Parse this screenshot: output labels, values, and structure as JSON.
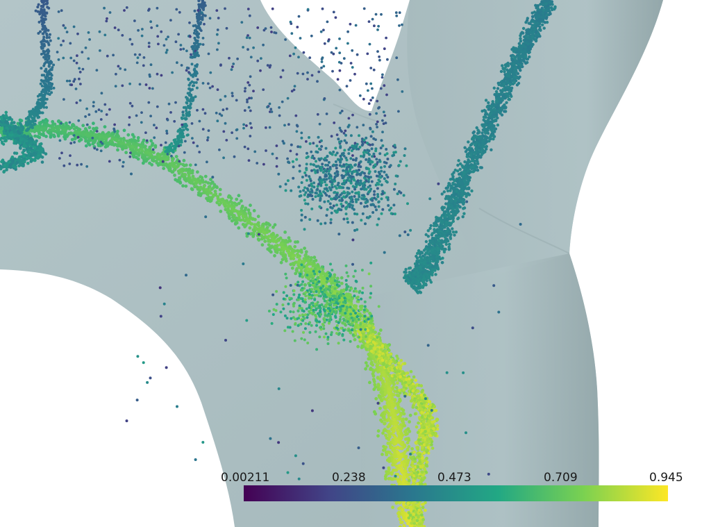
{
  "colorbar": {
    "colormap": "viridis",
    "colors": [
      "#440154",
      "#414487",
      "#2a788e",
      "#22a884",
      "#7ad151",
      "#fde725"
    ],
    "labels": [
      "0.00211",
      "0.238",
      "0.473",
      "0.709",
      "0.945"
    ],
    "min": 0.00211,
    "max": 0.945
  },
  "vessel": {
    "color": "#a9bcbe",
    "shade": "#96aaad"
  }
}
